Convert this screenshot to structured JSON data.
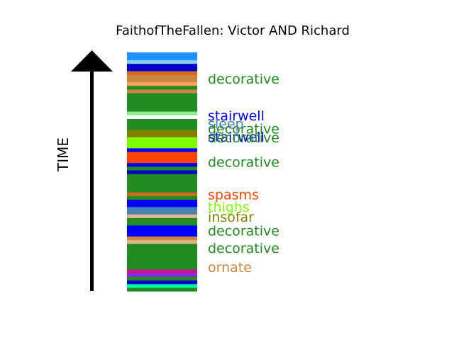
{
  "chart_data": {
    "type": "bar",
    "title": "FaithofTheFallen: Victor AND Richard",
    "ylabel": "TIME",
    "xlabel": "",
    "stripes": [
      {
        "color": "#228B22"
      },
      {
        "color": "#00FA9A"
      },
      {
        "color": "#0000CD"
      },
      {
        "color": "#228B22"
      },
      {
        "color": "#8A2BE2"
      },
      {
        "color": "#C71585"
      },
      {
        "color": "#228B22"
      },
      {
        "color": "#228B22"
      },
      {
        "color": "#228B22"
      },
      {
        "color": "#228B22"
      },
      {
        "color": "#228B22"
      },
      {
        "color": "#228B22"
      },
      {
        "color": "#228B22"
      },
      {
        "color": "#DEB887"
      },
      {
        "color": "#CD853F"
      },
      {
        "color": "#0000FF"
      },
      {
        "color": "#0000FF"
      },
      {
        "color": "#0000FF"
      },
      {
        "color": "#228B22"
      },
      {
        "color": "#228B22"
      },
      {
        "color": "#DEB887"
      },
      {
        "color": "#4682B4"
      },
      {
        "color": "#4682B4"
      },
      {
        "color": "#0000FF"
      },
      {
        "color": "#0000FF"
      },
      {
        "color": "#228B22"
      },
      {
        "color": "#D2691E"
      },
      {
        "color": "#228B22"
      },
      {
        "color": "#228B22"
      },
      {
        "color": "#228B22"
      },
      {
        "color": "#228B22"
      },
      {
        "color": "#228B22"
      },
      {
        "color": "#0000CD"
      },
      {
        "color": "#228B22"
      },
      {
        "color": "#0000FF"
      },
      {
        "color": "#FF4500"
      },
      {
        "color": "#FF4500"
      },
      {
        "color": "#FF4500"
      },
      {
        "color": "#0000FF"
      },
      {
        "color": "#7FFF00"
      },
      {
        "color": "#7FFF00"
      },
      {
        "color": "#7FFF00"
      },
      {
        "color": "#808000"
      },
      {
        "color": "#808000"
      },
      {
        "color": "#228B22"
      },
      {
        "color": "#228B22"
      },
      {
        "color": "#228B22"
      },
      {
        "color": "#ffffff"
      },
      {
        "color": "#90EE90"
      },
      {
        "color": "#228B22"
      },
      {
        "color": "#228B22"
      },
      {
        "color": "#228B22"
      },
      {
        "color": "#228B22"
      },
      {
        "color": "#228B22"
      },
      {
        "color": "#CD853F"
      },
      {
        "color": "#228B22"
      },
      {
        "color": "#F4A460"
      },
      {
        "color": "#CD853F"
      },
      {
        "color": "#CD853F"
      },
      {
        "color": "#D2691E"
      },
      {
        "color": "#0000CD"
      },
      {
        "color": "#0000CD"
      },
      {
        "color": "#87CEEB"
      },
      {
        "color": "#1E90FF"
      },
      {
        "color": "#1E90FF"
      }
    ],
    "labels": [
      {
        "text": "decorative",
        "color": "#228B22",
        "pos": 0.886
      },
      {
        "text": "stairwell",
        "color": "#0000FF",
        "pos": 0.731
      },
      {
        "text": "decorative",
        "color": "#228B22",
        "pos": 0.677
      },
      {
        "text": "sleep",
        "color": "#4682B4",
        "pos": 0.698
      },
      {
        "text": "stairwell",
        "color": "#0000FF",
        "pos": 0.642
      },
      {
        "text": "decorative",
        "color": "#228B22",
        "pos": 0.639
      },
      {
        "text": "decorative",
        "color": "#228B22",
        "pos": 0.537
      },
      {
        "text": "spasms",
        "color": "#FF4500",
        "pos": 0.401
      },
      {
        "text": "thighs",
        "color": "#7FFF00",
        "pos": 0.348
      },
      {
        "text": "insofar",
        "color": "#808000",
        "pos": 0.307
      },
      {
        "text": "decorative",
        "color": "#228B22",
        "pos": 0.249
      },
      {
        "text": "decorative",
        "color": "#228B22",
        "pos": 0.176
      },
      {
        "text": "ornate",
        "color": "#CD853F",
        "pos": 0.096
      }
    ]
  }
}
